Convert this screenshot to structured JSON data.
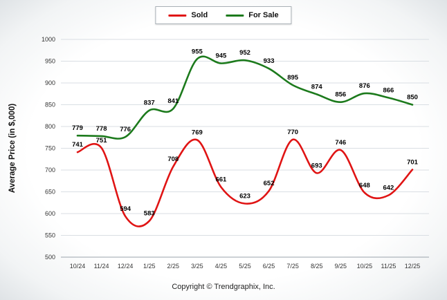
{
  "chart_data": {
    "type": "line",
    "title": "",
    "categories": [
      "10/24",
      "11/24",
      "12/24",
      "1/25",
      "2/25",
      "3/25",
      "4/25",
      "5/25",
      "6/25",
      "7/25",
      "8/25",
      "9/25",
      "10/25",
      "11/25",
      "12/25"
    ],
    "series": [
      {
        "name": "Sold",
        "color": "#e01414",
        "values": [
          741,
          751,
          594,
          583,
          708,
          769,
          661,
          623,
          652,
          770,
          693,
          746,
          648,
          642,
          701
        ]
      },
      {
        "name": "For Sale",
        "color": "#1c7a1c",
        "values": [
          779,
          778,
          776,
          837,
          841,
          955,
          945,
          952,
          933,
          895,
          874,
          856,
          876,
          866,
          850
        ]
      }
    ],
    "xlabel": "",
    "ylabel": "Average Price (in $,000)",
    "ylim": [
      500,
      1000
    ],
    "ytick_step": 50,
    "grid": true,
    "legend_position": "top"
  },
  "colors": {
    "grid_line": "#d9dee3",
    "axis_line": "#9aa3ab",
    "tick_text": "#333333",
    "data_label_text": "#000000"
  },
  "footer": {
    "copyright": "Copyright © Trendgraphix, Inc."
  }
}
